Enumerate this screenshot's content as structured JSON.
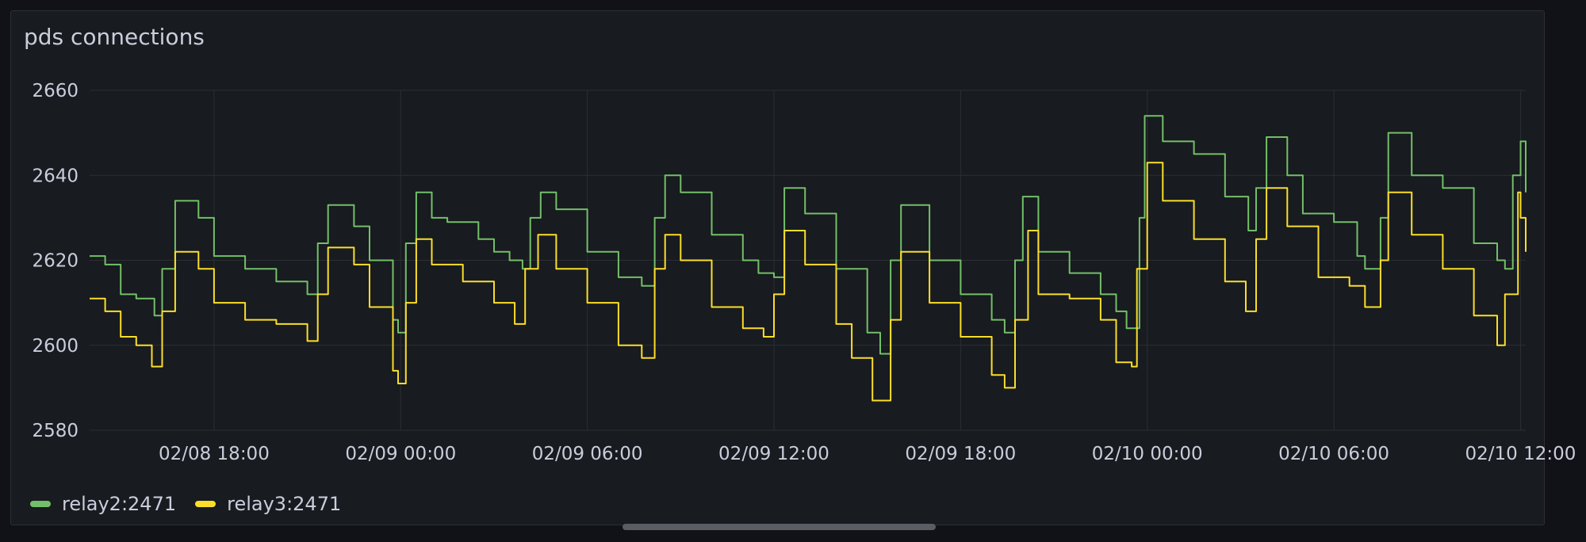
{
  "panel": {
    "title": "pds connections"
  },
  "colors": {
    "background": "#181b1f",
    "grid": "#2b2e33",
    "text": "#ccccdc",
    "relay2": "#73bf69",
    "relay3": "#fade2a"
  },
  "chart_data": {
    "type": "line",
    "title": "pds connections",
    "xlabel": "",
    "ylabel": "",
    "ylim": [
      2580,
      2660
    ],
    "y_ticks": [
      "2580",
      "2600",
      "2620",
      "2640",
      "2660"
    ],
    "x_range": [
      "2024-02-08 14:00",
      "2024-02-10 12:10"
    ],
    "x_ticks": [
      {
        "t": "2024-02-08 18:00",
        "label": "02/08 18:00"
      },
      {
        "t": "2024-02-09 00:00",
        "label": "02/09 00:00"
      },
      {
        "t": "2024-02-09 06:00",
        "label": "02/09 06:00"
      },
      {
        "t": "2024-02-09 12:00",
        "label": "02/09 12:00"
      },
      {
        "t": "2024-02-09 18:00",
        "label": "02/09 18:00"
      },
      {
        "t": "2024-02-10 00:00",
        "label": "02/10 00:00"
      },
      {
        "t": "2024-02-10 06:00",
        "label": "02/10 06:00"
      },
      {
        "t": "2024-02-10 12:00",
        "label": "02/10 12:00"
      }
    ],
    "grid": true,
    "legend": "bottom-left",
    "series": [
      {
        "name": "relay2:2471",
        "color": "#73bf69",
        "points": [
          [
            "2024-02-08 14:00",
            2621
          ],
          [
            "2024-02-08 14:30",
            2619
          ],
          [
            "2024-02-08 15:00",
            2612
          ],
          [
            "2024-02-08 15:30",
            2611
          ],
          [
            "2024-02-08 16:05",
            2607
          ],
          [
            "2024-02-08 16:20",
            2618
          ],
          [
            "2024-02-08 16:45",
            2634
          ],
          [
            "2024-02-08 17:30",
            2630
          ],
          [
            "2024-02-08 18:00",
            2621
          ],
          [
            "2024-02-08 19:00",
            2618
          ],
          [
            "2024-02-08 20:00",
            2615
          ],
          [
            "2024-02-08 21:00",
            2612
          ],
          [
            "2024-02-08 21:20",
            2624
          ],
          [
            "2024-02-08 21:40",
            2633
          ],
          [
            "2024-02-08 22:30",
            2628
          ],
          [
            "2024-02-08 23:00",
            2620
          ],
          [
            "2024-02-08 23:45",
            2606
          ],
          [
            "2024-02-08 23:55",
            2603
          ],
          [
            "2024-02-09 00:10",
            2624
          ],
          [
            "2024-02-09 00:30",
            2636
          ],
          [
            "2024-02-09 01:00",
            2630
          ],
          [
            "2024-02-09 01:30",
            2629
          ],
          [
            "2024-02-09 02:30",
            2625
          ],
          [
            "2024-02-09 03:00",
            2622
          ],
          [
            "2024-02-09 03:30",
            2620
          ],
          [
            "2024-02-09 03:55",
            2618
          ],
          [
            "2024-02-09 04:10",
            2630
          ],
          [
            "2024-02-09 04:30",
            2636
          ],
          [
            "2024-02-09 05:00",
            2632
          ],
          [
            "2024-02-09 06:00",
            2622
          ],
          [
            "2024-02-09 07:00",
            2616
          ],
          [
            "2024-02-09 07:45",
            2614
          ],
          [
            "2024-02-09 08:10",
            2630
          ],
          [
            "2024-02-09 08:30",
            2640
          ],
          [
            "2024-02-09 09:00",
            2636
          ],
          [
            "2024-02-09 10:00",
            2626
          ],
          [
            "2024-02-09 11:00",
            2620
          ],
          [
            "2024-02-09 11:30",
            2617
          ],
          [
            "2024-02-09 12:00",
            2616
          ],
          [
            "2024-02-09 12:20",
            2637
          ],
          [
            "2024-02-09 13:00",
            2631
          ],
          [
            "2024-02-09 14:00",
            2618
          ],
          [
            "2024-02-09 15:00",
            2603
          ],
          [
            "2024-02-09 15:25",
            2598
          ],
          [
            "2024-02-09 15:45",
            2620
          ],
          [
            "2024-02-09 16:05",
            2633
          ],
          [
            "2024-02-09 17:00",
            2620
          ],
          [
            "2024-02-09 18:00",
            2612
          ],
          [
            "2024-02-09 19:00",
            2606
          ],
          [
            "2024-02-09 19:25",
            2603
          ],
          [
            "2024-02-09 19:45",
            2620
          ],
          [
            "2024-02-09 20:00",
            2635
          ],
          [
            "2024-02-09 20:30",
            2622
          ],
          [
            "2024-02-09 21:30",
            2617
          ],
          [
            "2024-02-09 22:30",
            2612
          ],
          [
            "2024-02-09 23:00",
            2608
          ],
          [
            "2024-02-09 23:20",
            2604
          ],
          [
            "2024-02-09 23:35",
            2604
          ],
          [
            "2024-02-09 23:45",
            2630
          ],
          [
            "2024-02-09 23:55",
            2654
          ],
          [
            "2024-02-10 00:30",
            2648
          ],
          [
            "2024-02-10 01:30",
            2645
          ],
          [
            "2024-02-10 02:30",
            2635
          ],
          [
            "2024-02-10 03:15",
            2627
          ],
          [
            "2024-02-10 03:30",
            2637
          ],
          [
            "2024-02-10 03:50",
            2649
          ],
          [
            "2024-02-10 04:30",
            2640
          ],
          [
            "2024-02-10 05:00",
            2631
          ],
          [
            "2024-02-10 06:00",
            2629
          ],
          [
            "2024-02-10 06:45",
            2621
          ],
          [
            "2024-02-10 07:00",
            2618
          ],
          [
            "2024-02-10 07:30",
            2630
          ],
          [
            "2024-02-10 07:45",
            2650
          ],
          [
            "2024-02-10 08:30",
            2640
          ],
          [
            "2024-02-10 09:30",
            2637
          ],
          [
            "2024-02-10 10:30",
            2624
          ],
          [
            "2024-02-10 11:15",
            2620
          ],
          [
            "2024-02-10 11:30",
            2618
          ],
          [
            "2024-02-10 11:45",
            2640
          ],
          [
            "2024-02-10 12:00",
            2648
          ],
          [
            "2024-02-10 12:10",
            2636
          ]
        ]
      },
      {
        "name": "relay3:2471",
        "color": "#fade2a",
        "points": [
          [
            "2024-02-08 14:00",
            2611
          ],
          [
            "2024-02-08 14:30",
            2608
          ],
          [
            "2024-02-08 15:00",
            2602
          ],
          [
            "2024-02-08 15:30",
            2600
          ],
          [
            "2024-02-08 16:00",
            2595
          ],
          [
            "2024-02-08 16:10",
            2595
          ],
          [
            "2024-02-08 16:20",
            2608
          ],
          [
            "2024-02-08 16:45",
            2622
          ],
          [
            "2024-02-08 17:30",
            2618
          ],
          [
            "2024-02-08 18:00",
            2610
          ],
          [
            "2024-02-08 19:00",
            2606
          ],
          [
            "2024-02-08 20:00",
            2605
          ],
          [
            "2024-02-08 21:00",
            2601
          ],
          [
            "2024-02-08 21:20",
            2612
          ],
          [
            "2024-02-08 21:40",
            2623
          ],
          [
            "2024-02-08 22:30",
            2619
          ],
          [
            "2024-02-08 23:00",
            2609
          ],
          [
            "2024-02-08 23:45",
            2594
          ],
          [
            "2024-02-08 23:55",
            2591
          ],
          [
            "2024-02-09 00:10",
            2610
          ],
          [
            "2024-02-09 00:30",
            2625
          ],
          [
            "2024-02-09 01:00",
            2619
          ],
          [
            "2024-02-09 02:00",
            2615
          ],
          [
            "2024-02-09 03:00",
            2610
          ],
          [
            "2024-02-09 03:40",
            2605
          ],
          [
            "2024-02-09 04:00",
            2618
          ],
          [
            "2024-02-09 04:25",
            2626
          ],
          [
            "2024-02-09 05:00",
            2618
          ],
          [
            "2024-02-09 06:00",
            2610
          ],
          [
            "2024-02-09 07:00",
            2600
          ],
          [
            "2024-02-09 07:45",
            2597
          ],
          [
            "2024-02-09 08:10",
            2618
          ],
          [
            "2024-02-09 08:30",
            2626
          ],
          [
            "2024-02-09 09:00",
            2620
          ],
          [
            "2024-02-09 10:00",
            2609
          ],
          [
            "2024-02-09 11:00",
            2604
          ],
          [
            "2024-02-09 11:40",
            2602
          ],
          [
            "2024-02-09 12:00",
            2612
          ],
          [
            "2024-02-09 12:20",
            2627
          ],
          [
            "2024-02-09 13:00",
            2619
          ],
          [
            "2024-02-09 14:00",
            2605
          ],
          [
            "2024-02-09 14:30",
            2597
          ],
          [
            "2024-02-09 15:10",
            2587
          ],
          [
            "2024-02-09 15:45",
            2606
          ],
          [
            "2024-02-09 16:05",
            2622
          ],
          [
            "2024-02-09 17:00",
            2610
          ],
          [
            "2024-02-09 18:00",
            2602
          ],
          [
            "2024-02-09 19:00",
            2593
          ],
          [
            "2024-02-09 19:25",
            2590
          ],
          [
            "2024-02-09 19:45",
            2606
          ],
          [
            "2024-02-09 20:10",
            2627
          ],
          [
            "2024-02-09 20:30",
            2612
          ],
          [
            "2024-02-09 21:30",
            2611
          ],
          [
            "2024-02-09 22:30",
            2606
          ],
          [
            "2024-02-09 23:00",
            2596
          ],
          [
            "2024-02-09 23:30",
            2595
          ],
          [
            "2024-02-09 23:40",
            2618
          ],
          [
            "2024-02-10 00:00",
            2643
          ],
          [
            "2024-02-10 00:30",
            2634
          ],
          [
            "2024-02-10 01:30",
            2625
          ],
          [
            "2024-02-10 02:30",
            2615
          ],
          [
            "2024-02-10 03:10",
            2608
          ],
          [
            "2024-02-10 03:30",
            2625
          ],
          [
            "2024-02-10 03:50",
            2637
          ],
          [
            "2024-02-10 04:30",
            2628
          ],
          [
            "2024-02-10 05:30",
            2616
          ],
          [
            "2024-02-10 06:30",
            2614
          ],
          [
            "2024-02-10 07:00",
            2609
          ],
          [
            "2024-02-10 07:30",
            2620
          ],
          [
            "2024-02-10 07:45",
            2636
          ],
          [
            "2024-02-10 08:30",
            2626
          ],
          [
            "2024-02-10 09:30",
            2618
          ],
          [
            "2024-02-10 10:30",
            2607
          ],
          [
            "2024-02-10 11:15",
            2600
          ],
          [
            "2024-02-10 11:30",
            2612
          ],
          [
            "2024-02-10 11:55",
            2636
          ],
          [
            "2024-02-10 12:00",
            2630
          ],
          [
            "2024-02-10 12:10",
            2622
          ]
        ]
      }
    ]
  }
}
